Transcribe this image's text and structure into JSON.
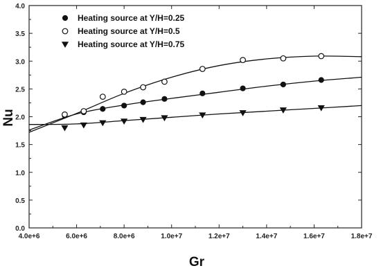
{
  "chart_data": {
    "type": "scatter",
    "xlabel": "Gr",
    "ylabel": "Nu",
    "xlim": [
      4000000,
      18000000
    ],
    "ylim": [
      0.0,
      4.0
    ],
    "x_ticks": [
      4000000,
      6000000,
      8000000,
      10000000,
      12000000,
      14000000,
      16000000,
      18000000
    ],
    "x_tick_labels": [
      "4.0e+6",
      "6.0e+6",
      "8.0e+6",
      "1.0e+7",
      "1.2e+7",
      "1.4e+7",
      "1.6e+7",
      "1.8e+7"
    ],
    "y_ticks": [
      0.0,
      0.5,
      1.0,
      1.5,
      2.0,
      2.5,
      3.0,
      3.5,
      4.0
    ],
    "y_tick_labels": [
      "0.0",
      "0.5",
      "1.0",
      "1.5",
      "2.0",
      "2.5",
      "3.0",
      "3.5",
      "4.0"
    ],
    "legend_position": "top-left",
    "grid": false,
    "series": [
      {
        "name": "Heating source at Y/H=0.25",
        "marker": "filled-circle",
        "color": "#111111",
        "x": [
          5500000,
          6300000,
          7100000,
          8000000,
          8800000,
          9700000,
          11300000,
          13000000,
          14700000,
          16300000
        ],
        "y": [
          2.02,
          2.08,
          2.14,
          2.2,
          2.26,
          2.32,
          2.42,
          2.51,
          2.58,
          2.66
        ],
        "fit_curve": [
          [
            4000000,
            1.76
          ],
          [
            6000000,
            2.05
          ],
          [
            8000000,
            2.21
          ],
          [
            10000000,
            2.33
          ],
          [
            12000000,
            2.44
          ],
          [
            14000000,
            2.55
          ],
          [
            16000000,
            2.64
          ],
          [
            18000000,
            2.71
          ]
        ]
      },
      {
        "name": "Heating source at Y/H=0.5",
        "marker": "open-circle",
        "color": "#111111",
        "x": [
          5500000,
          6300000,
          7100000,
          8000000,
          8800000,
          9700000,
          11300000,
          13000000,
          14700000,
          16300000
        ],
        "y": [
          2.04,
          2.1,
          2.36,
          2.45,
          2.53,
          2.63,
          2.86,
          3.02,
          3.05,
          3.09
        ],
        "fit_curve": [
          [
            4000000,
            1.72
          ],
          [
            6000000,
            2.06
          ],
          [
            8000000,
            2.42
          ],
          [
            10000000,
            2.71
          ],
          [
            12000000,
            2.92
          ],
          [
            14000000,
            3.04
          ],
          [
            16000000,
            3.09
          ],
          [
            18000000,
            3.08
          ]
        ]
      },
      {
        "name": "Heating source at Y/H=0.75",
        "marker": "filled-triangle-down",
        "color": "#111111",
        "x": [
          5500000,
          6300000,
          7100000,
          8000000,
          8800000,
          9700000,
          11300000,
          13000000,
          14700000,
          16300000
        ],
        "y": [
          1.8,
          1.85,
          1.89,
          1.92,
          1.95,
          1.98,
          2.03,
          2.07,
          2.12,
          2.16
        ],
        "fit_curve": [
          [
            4000000,
            1.86
          ],
          [
            6000000,
            1.87
          ],
          [
            8000000,
            1.93
          ],
          [
            10000000,
            1.99
          ],
          [
            12000000,
            2.05
          ],
          [
            14000000,
            2.1
          ],
          [
            16000000,
            2.15
          ],
          [
            18000000,
            2.2
          ]
        ]
      }
    ]
  }
}
